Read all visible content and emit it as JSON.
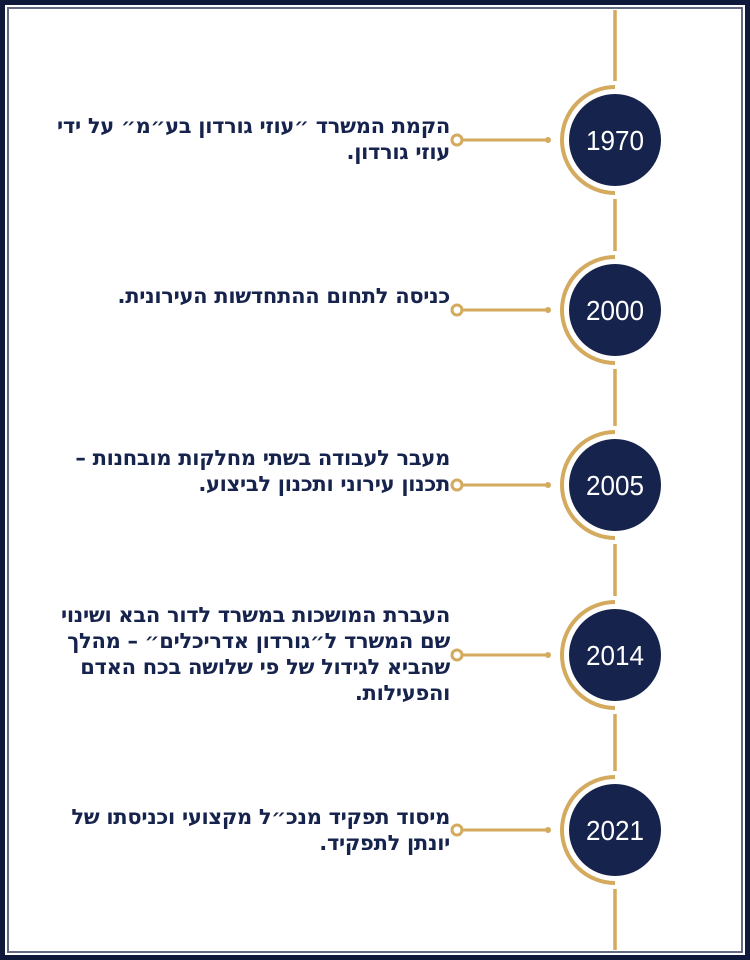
{
  "colors": {
    "navy": "#16234d",
    "gold": "#d4aa5e",
    "frame": "#0f1a3a"
  },
  "events": [
    {
      "year": "1970",
      "text": "הקמת המשרד ״עוזי גורדון בע״מ״ על ידי עוזי גורדון."
    },
    {
      "year": "2000",
      "text": "כניסה לתחום ההתחדשות העירונית."
    },
    {
      "year": "2005",
      "text": "מעבר לעבודה בשתי מחלקות מובחנות – תכנון עירוני ותכנון לביצוע."
    },
    {
      "year": "2014",
      "text": "העברת המושכות במשרד לדור הבא ושינוי שם המשרד ל״גורדון אדריכלים״ – מהלך שהביא לגידול של פי שלושה בכח האדם והפעילות."
    },
    {
      "year": "2021",
      "text": "מיסוד תפקיד מנכ״ל מקצועי וכניסתו של יונתן לתפקיד."
    }
  ]
}
